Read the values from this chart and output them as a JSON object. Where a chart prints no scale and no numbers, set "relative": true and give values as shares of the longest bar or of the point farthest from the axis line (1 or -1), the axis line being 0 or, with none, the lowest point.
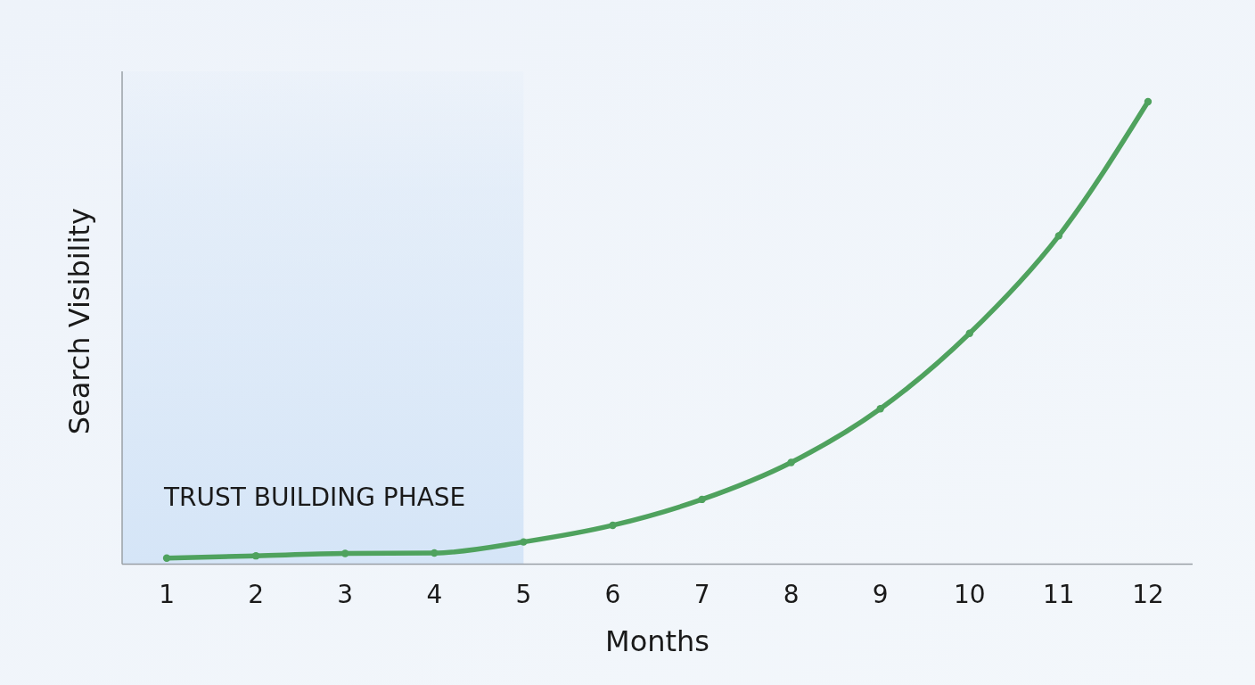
{
  "chart_data": {
    "type": "line",
    "xlabel": "Months",
    "ylabel": "Search Visibility",
    "relative": true,
    "x": [
      1,
      2,
      3,
      4,
      5,
      6,
      7,
      8,
      9,
      10,
      11,
      12
    ],
    "series": [
      {
        "color": "#4fa25e",
        "values": [
          0.013,
          0.018,
          0.023,
          0.024,
          0.048,
          0.084,
          0.14,
          0.22,
          0.336,
          0.499,
          0.71,
          1
        ]
      }
    ],
    "xlim": [
      0.5,
      12.5
    ],
    "xticks": [
      1,
      2,
      3,
      4,
      5,
      6,
      7,
      8,
      9,
      10,
      11,
      12
    ],
    "marker": "circle",
    "bands": [
      {
        "axis": "x",
        "from": 0.5,
        "to": 5,
        "label": "TRUST BUILDING PHASE",
        "color": "#d5e5f7"
      }
    ]
  }
}
